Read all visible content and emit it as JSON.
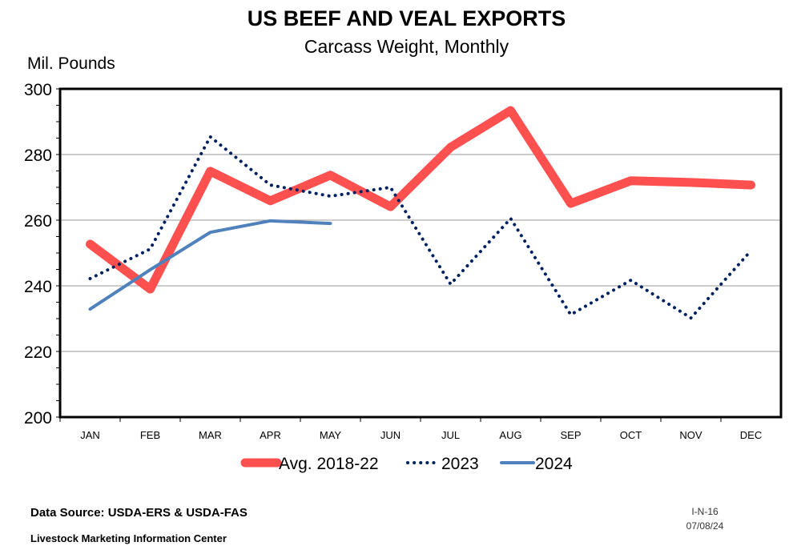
{
  "chart_data": {
    "type": "line",
    "title": "US BEEF AND VEAL EXPORTS",
    "subtitle": "Carcass Weight, Monthly",
    "ylabel": "Mil. Pounds",
    "xlabel": "",
    "categories": [
      "JAN",
      "FEB",
      "MAR",
      "APR",
      "MAY",
      "JUN",
      "JUL",
      "AUG",
      "SEP",
      "OCT",
      "NOV",
      "DEC"
    ],
    "ylim": [
      200,
      300
    ],
    "yticks": [
      200,
      220,
      240,
      260,
      280,
      300
    ],
    "grid": true,
    "legend": "bottom",
    "series": [
      {
        "name": "Avg. 2018-22",
        "color": "#ff5050",
        "style": "thick-solid",
        "values": [
          252.7,
          239,
          274.9,
          265.9,
          273.7,
          264.1,
          282.2,
          293.4,
          265.1,
          272,
          271.5,
          270.7
        ]
      },
      {
        "name": "2023",
        "color": "#002060",
        "style": "dotted",
        "values": [
          242.2,
          251.2,
          285.4,
          270.7,
          267.3,
          270,
          240.5,
          260.5,
          231.2,
          241.7,
          230.2,
          250.7
        ]
      },
      {
        "name": "2024",
        "color": "#4f81bd",
        "style": "solid",
        "values": [
          232.9,
          244.9,
          256.3,
          259.8,
          259,
          null,
          null,
          null,
          null,
          null,
          null,
          null
        ]
      }
    ]
  },
  "footer": {
    "source": "Data Source:  USDA-ERS & USDA-FAS",
    "org": "Livestock Marketing Information Center",
    "code": "I-N-16",
    "date": "07/08/24"
  }
}
